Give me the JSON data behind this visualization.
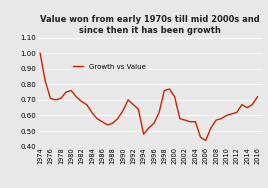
{
  "title": "Value won from early 1970s till mid 2000s and\nsince then it has been growth",
  "legend_label": "Growth vs Value",
  "line_color": "#cc2200",
  "background_color": "#e8e8e8",
  "plot_bg_color": "#e8e8e8",
  "ylim": [
    0.4,
    1.1
  ],
  "yticks": [
    0.4,
    0.5,
    0.6,
    0.7,
    0.8,
    0.9,
    1.0,
    1.1
  ],
  "data": [
    [
      1974,
      1.0
    ],
    [
      1975,
      0.82
    ],
    [
      1976,
      0.71
    ],
    [
      1977,
      0.7
    ],
    [
      1978,
      0.71
    ],
    [
      1979,
      0.75
    ],
    [
      1980,
      0.76
    ],
    [
      1981,
      0.72
    ],
    [
      1982,
      0.69
    ],
    [
      1983,
      0.67
    ],
    [
      1984,
      0.62
    ],
    [
      1985,
      0.58
    ],
    [
      1986,
      0.56
    ],
    [
      1987,
      0.54
    ],
    [
      1988,
      0.55
    ],
    [
      1989,
      0.58
    ],
    [
      1990,
      0.63
    ],
    [
      1991,
      0.7
    ],
    [
      1992,
      0.67
    ],
    [
      1993,
      0.64
    ],
    [
      1994,
      0.48
    ],
    [
      1995,
      0.52
    ],
    [
      1996,
      0.55
    ],
    [
      1997,
      0.62
    ],
    [
      1998,
      0.76
    ],
    [
      1999,
      0.77
    ],
    [
      2000,
      0.72
    ],
    [
      2001,
      0.58
    ],
    [
      2002,
      0.57
    ],
    [
      2003,
      0.56
    ],
    [
      2004,
      0.56
    ],
    [
      2005,
      0.46
    ],
    [
      2006,
      0.44
    ],
    [
      2007,
      0.52
    ],
    [
      2008,
      0.57
    ],
    [
      2009,
      0.58
    ],
    [
      2010,
      0.6
    ],
    [
      2011,
      0.61
    ],
    [
      2012,
      0.62
    ],
    [
      2013,
      0.67
    ],
    [
      2014,
      0.65
    ],
    [
      2015,
      0.67
    ],
    [
      2016,
      0.72
    ]
  ]
}
